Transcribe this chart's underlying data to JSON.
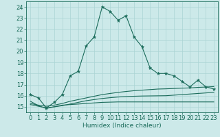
{
  "xlabel": "Humidex (Indice chaleur)",
  "bg_color": "#cce9e9",
  "line_color": "#1a6b5a",
  "x_data": [
    0,
    1,
    2,
    3,
    4,
    5,
    6,
    7,
    8,
    9,
    10,
    11,
    12,
    13,
    14,
    15,
    16,
    17,
    18,
    19,
    20,
    21,
    22,
    23
  ],
  "y_main": [
    16.1,
    15.8,
    14.9,
    15.4,
    16.1,
    17.8,
    18.2,
    20.5,
    21.3,
    24.0,
    23.6,
    22.8,
    23.2,
    21.3,
    20.4,
    18.5,
    18.0,
    18.0,
    17.8,
    17.3,
    16.8,
    17.4,
    16.8,
    16.6
  ],
  "y_low1": [
    15.5,
    15.1,
    14.85,
    15.0,
    15.15,
    15.2,
    15.25,
    15.3,
    15.35,
    15.4,
    15.42,
    15.44,
    15.44,
    15.44,
    15.44,
    15.44,
    15.44,
    15.44,
    15.44,
    15.44,
    15.44,
    15.44,
    15.44,
    15.44
  ],
  "y_low2": [
    15.2,
    15.05,
    14.9,
    15.0,
    15.1,
    15.25,
    15.4,
    15.55,
    15.65,
    15.75,
    15.82,
    15.88,
    15.92,
    15.95,
    15.97,
    15.98,
    15.99,
    16.0,
    16.05,
    16.1,
    16.15,
    16.2,
    16.25,
    16.3
  ],
  "y_low3": [
    15.3,
    15.15,
    15.05,
    15.15,
    15.3,
    15.5,
    15.65,
    15.8,
    15.95,
    16.1,
    16.2,
    16.3,
    16.38,
    16.45,
    16.5,
    16.55,
    16.6,
    16.62,
    16.65,
    16.68,
    16.7,
    16.75,
    16.78,
    16.82
  ],
  "ylim": [
    14.5,
    24.5
  ],
  "yticks": [
    15,
    16,
    17,
    18,
    19,
    20,
    21,
    22,
    23,
    24
  ],
  "xticks": [
    0,
    1,
    2,
    3,
    4,
    5,
    6,
    7,
    8,
    9,
    10,
    11,
    12,
    13,
    14,
    15,
    16,
    17,
    18,
    19,
    20,
    21,
    22,
    23
  ],
  "grid_color": "#aad4d4",
  "label_fontsize": 6.5,
  "tick_fontsize": 6.0
}
